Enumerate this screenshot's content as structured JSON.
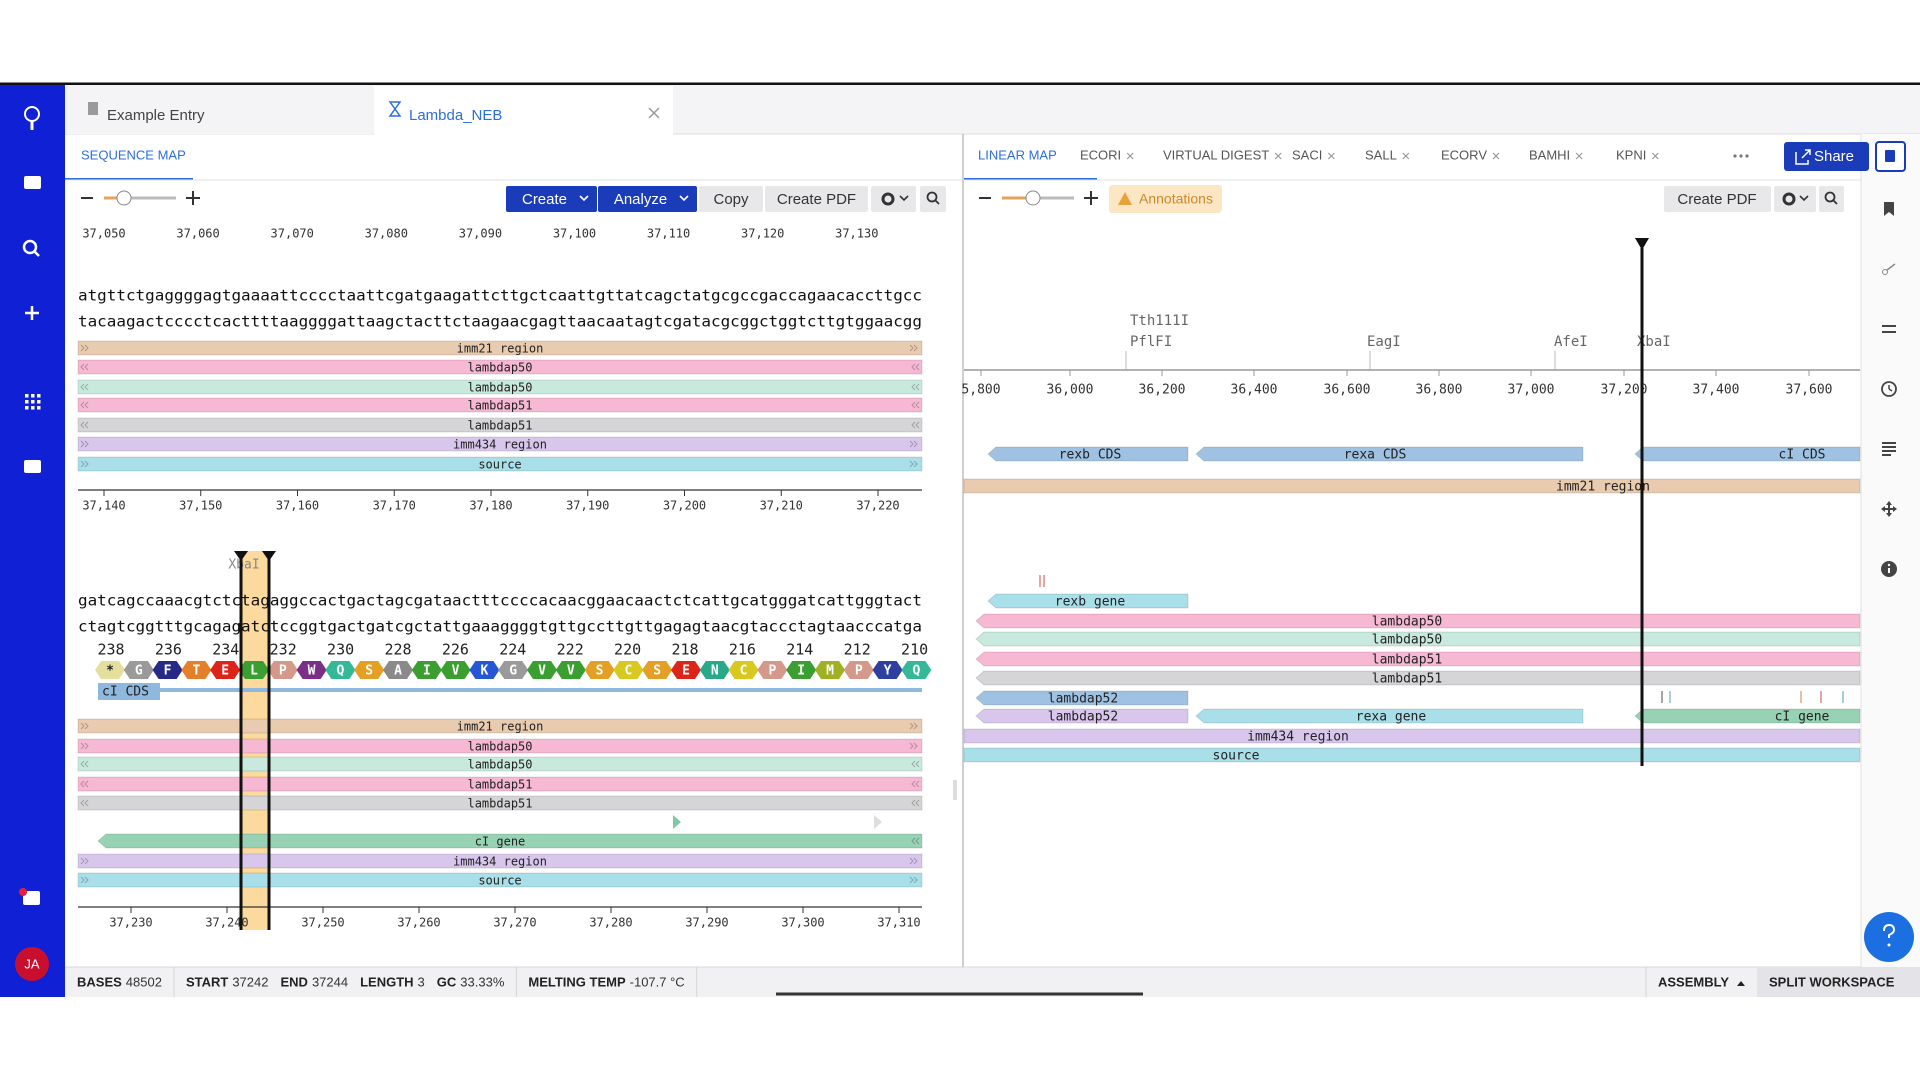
{
  "tabs": [
    {
      "title": "Example Entry"
    },
    {
      "title": "Lambda_NEB"
    }
  ],
  "sequence_map": {
    "tab": "SEQUENCE MAP",
    "toolbar": {
      "create": "Create",
      "analyze": "Analyze",
      "copy": "Copy",
      "create_pdf": "Create PDF"
    },
    "top_ruler": [
      "37,050",
      "37,060",
      "37,070",
      "37,080",
      "37,090",
      "37,100",
      "37,110",
      "37,120",
      "37,130"
    ],
    "rows": [
      {
        "top_strand": "atgttctgaggggagtgaaaattcccctaattcgatgaagattcttgctcaattgttatcagctatgcgccgaccagaacaccttgcc",
        "bottom_strand": "tacaagactcccctcacttttaaggggattaagctacttctaagaacgagttaacaatagtcgatacgcggctggtcttgtggaacgg",
        "features": [
          {
            "label": "imm21 region",
            "color": "#e9cbb0"
          },
          {
            "label": "lambdap50",
            "color": "#f7b8d4"
          },
          {
            "label": "lambdap50",
            "color": "#c8e9dd"
          },
          {
            "label": "lambdap51",
            "color": "#f7b8d4"
          },
          {
            "label": "lambdap51",
            "color": "#d5d5d8"
          },
          {
            "label": "imm434 region",
            "color": "#d8c6ec"
          },
          {
            "label": "source",
            "color": "#a9dfe9"
          }
        ],
        "ruler": [
          "37,140",
          "37,150",
          "37,160",
          "37,170",
          "37,180",
          "37,190",
          "37,200",
          "37,210",
          "37,220"
        ]
      },
      {
        "enzyme": "XbaI",
        "top_strand": "gatcagccaaacgtctctagaggccactgactagcgataactttccccacaacggaacaactctcattgcatgggatcattgggtact",
        "bottom_strand": "ctagtcggtttgcagagatctccggtgactgatcgctattgaaaggggtgttgccttgttgagagtaacgtaccctagtaacccatga",
        "aa_numbers": [
          "238",
          "236",
          "234",
          "232",
          "230",
          "228",
          "226",
          "224",
          "222",
          "220",
          "218",
          "216",
          "214",
          "212",
          "210"
        ],
        "amino_acids": [
          {
            "letter": "*",
            "color": "#e4df9c"
          },
          {
            "letter": "G",
            "color": "#9a9a9a"
          },
          {
            "letter": "F",
            "color": "#262a86"
          },
          {
            "letter": "T",
            "color": "#e5802a"
          },
          {
            "letter": "E",
            "color": "#dd2419"
          },
          {
            "letter": "L",
            "color": "#3a9f30"
          },
          {
            "letter": "P",
            "color": "#d4998a"
          },
          {
            "letter": "W",
            "color": "#7a2e88"
          },
          {
            "letter": "Q",
            "color": "#35b898"
          },
          {
            "letter": "S",
            "color": "#e3a024"
          },
          {
            "letter": "A",
            "color": "#8a8a8a"
          },
          {
            "letter": "I",
            "color": "#3a9f30"
          },
          {
            "letter": "V",
            "color": "#3a9f30"
          },
          {
            "letter": "K",
            "color": "#2456d6"
          },
          {
            "letter": "G",
            "color": "#9a9a9a"
          },
          {
            "letter": "V",
            "color": "#3a9f30"
          },
          {
            "letter": "V",
            "color": "#3a9f30"
          },
          {
            "letter": "S",
            "color": "#e3a024"
          },
          {
            "letter": "C",
            "color": "#d8c820"
          },
          {
            "letter": "S",
            "color": "#e3a024"
          },
          {
            "letter": "E",
            "color": "#dd2419"
          },
          {
            "letter": "N",
            "color": "#2aa88a"
          },
          {
            "letter": "C",
            "color": "#d8c820"
          },
          {
            "letter": "P",
            "color": "#d4998a"
          },
          {
            "letter": "I",
            "color": "#3a9f30"
          },
          {
            "letter": "M",
            "color": "#9fb020"
          },
          {
            "letter": "P",
            "color": "#d4998a"
          },
          {
            "letter": "Y",
            "color": "#2f3fa0"
          },
          {
            "letter": "Q",
            "color": "#35b898"
          }
        ],
        "cds": {
          "label": "cI CDS",
          "color": "#8fb8de"
        },
        "features": [
          {
            "label": "imm21 region",
            "color": "#e9cbb0"
          },
          {
            "label": "lambdap50",
            "color": "#f7b8d4"
          },
          {
            "label": "lambdap50",
            "color": "#c8e9dd"
          },
          {
            "label": "lambdap51",
            "color": "#f7b8d4"
          },
          {
            "label": "lambdap51",
            "color": "#d5d5d8"
          },
          {
            "label": "cI gene",
            "color": "#98d2b4"
          },
          {
            "label": "imm434 region",
            "color": "#d8c6ec"
          },
          {
            "label": "source",
            "color": "#a9dfe9"
          }
        ],
        "ruler": [
          "37,230",
          "37,240",
          "37,250",
          "37,260",
          "37,270",
          "37,280",
          "37,290",
          "37,300",
          "37,310"
        ]
      }
    ]
  },
  "linear_map": {
    "tabs": [
      "LINEAR MAP",
      "ECORI",
      "VIRTUAL DIGEST",
      "SACI",
      "SALL",
      "ECORV",
      "BAMHI",
      "KPNI"
    ],
    "share": "Share",
    "annotations": "Annotations",
    "create_pdf": "Create PDF",
    "enzymes": [
      "Tth111I",
      "PflFI",
      "EagI",
      "AfeI",
      "XbaI"
    ],
    "axis": [
      "5,800",
      "36,000",
      "36,200",
      "36,400",
      "36,600",
      "36,800",
      "37,000",
      "37,200",
      "37,400",
      "37,600"
    ],
    "features": [
      {
        "label": "rexb CDS",
        "color": "#9fc2e2"
      },
      {
        "label": "rexa CDS",
        "color": "#9fc2e2"
      },
      {
        "label": "cI CDS",
        "color": "#9fc2e2"
      },
      {
        "label": "imm21 region",
        "color": "#e9cbb0"
      },
      {
        "label": "rexb gene",
        "color": "#a9dfe9"
      },
      {
        "label": "lambdap50",
        "color": "#f7b8d4"
      },
      {
        "label": "lambdap50",
        "color": "#c8e9dd"
      },
      {
        "label": "lambdap51",
        "color": "#f7b8d4"
      },
      {
        "label": "lambdap51",
        "color": "#d5d5d8"
      },
      {
        "label": "lambdap52",
        "color": "#9fc2e2"
      },
      {
        "label": "lambdap52",
        "color": "#d8c6ec"
      },
      {
        "label": "rexa gene",
        "color": "#a9dfe9"
      },
      {
        "label": "cI gene",
        "color": "#98d2b4"
      },
      {
        "label": "imm434 region",
        "color": "#d8c6ec"
      },
      {
        "label": "source",
        "color": "#a9dfe9"
      }
    ]
  },
  "status": {
    "items": [
      {
        "label": "BASES",
        "value": "48502"
      },
      {
        "label": "START",
        "value": "37242"
      },
      {
        "label": "END",
        "value": "37244"
      },
      {
        "label": "LENGTH",
        "value": "3"
      },
      {
        "label": "GC",
        "value": "33.33%"
      },
      {
        "label": "MELTING TEMP",
        "value": "-107.7 °C"
      }
    ],
    "assembly": "ASSEMBLY",
    "split": "SPLIT WORKSPACE"
  },
  "user": {
    "initials": "JA"
  }
}
